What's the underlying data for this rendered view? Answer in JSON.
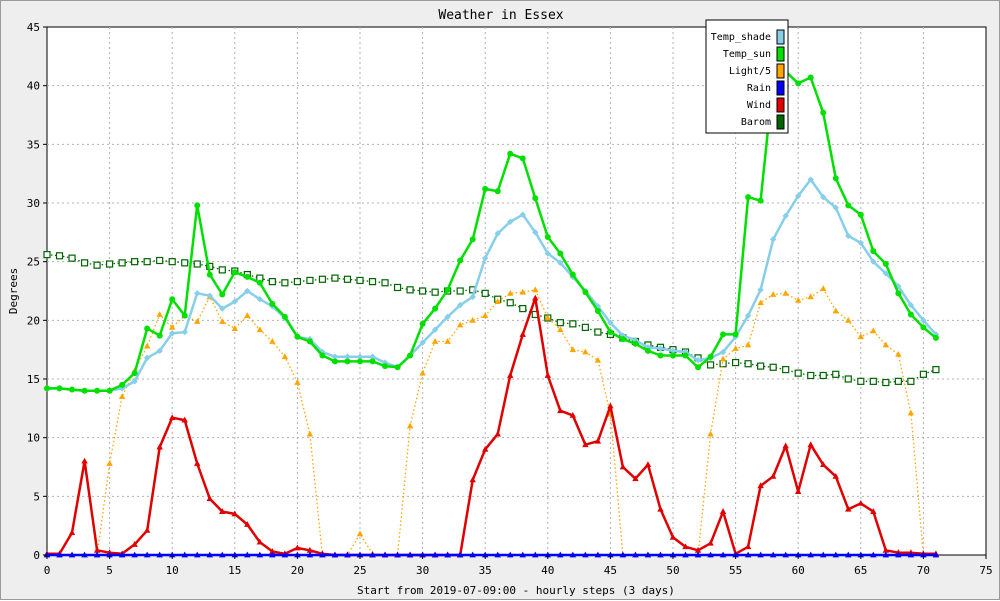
{
  "chart_data": {
    "type": "line",
    "title": "Weather in Essex",
    "xlabel": "Start from 2019-07-09:00 - hourly steps (3 days)",
    "ylabel": "Degrees",
    "xlim": [
      0,
      75
    ],
    "ylim": [
      0,
      45
    ],
    "xticks": [
      0,
      5,
      10,
      15,
      20,
      25,
      30,
      35,
      40,
      45,
      50,
      55,
      60,
      65,
      70,
      75
    ],
    "yticks": [
      0,
      5,
      10,
      15,
      20,
      25,
      30,
      35,
      40,
      45
    ],
    "grid": true,
    "legend_position": "top-right",
    "series": [
      {
        "name": "Temp_shade",
        "color": "#87ceeb",
        "marker": "diamond",
        "values": [
          14.2,
          14.2,
          14.1,
          14.0,
          14.0,
          14.0,
          14.2,
          14.8,
          16.8,
          17.4,
          18.9,
          19.0,
          22.3,
          22.1,
          21.0,
          21.6,
          22.5,
          21.8,
          21.2,
          20.2,
          18.6,
          18.4,
          17.3,
          16.9,
          16.9,
          16.9,
          16.9,
          16.4,
          16.0,
          17.0,
          18.1,
          19.2,
          20.3,
          21.3,
          22.0,
          25.3,
          27.4,
          28.4,
          29.0,
          27.5,
          25.7,
          24.9,
          23.7,
          22.5,
          21.2,
          19.8,
          18.7,
          18.3,
          17.7,
          17.6,
          17.4,
          17.3,
          16.6,
          16.8,
          17.3,
          18.6,
          20.4,
          22.6,
          26.9,
          28.9,
          30.6,
          32.0,
          30.5,
          29.6,
          27.2,
          26.6,
          25.0,
          24.0,
          22.9,
          21.3,
          20.0,
          18.8
        ]
      },
      {
        "name": "Temp_sun",
        "color": "#00e000",
        "marker": "circle",
        "values": [
          14.2,
          14.2,
          14.1,
          14.0,
          14.0,
          14.0,
          14.5,
          15.5,
          19.3,
          18.7,
          21.8,
          20.4,
          29.8,
          23.9,
          22.2,
          24.1,
          23.7,
          23.2,
          21.4,
          20.3,
          18.6,
          18.2,
          17.0,
          16.5,
          16.5,
          16.5,
          16.5,
          16.1,
          16.0,
          17.0,
          19.7,
          21.0,
          22.6,
          25.1,
          26.9,
          31.2,
          31.0,
          34.2,
          33.8,
          30.4,
          27.1,
          25.7,
          23.9,
          22.4,
          20.8,
          19.0,
          18.4,
          18.0,
          17.4,
          17.0,
          17.0,
          17.0,
          16.0,
          16.9,
          18.8,
          18.8,
          30.5,
          30.2,
          40.5,
          41.2,
          40.2,
          40.7,
          37.7,
          32.1,
          29.8,
          29.0,
          25.9,
          24.8,
          22.3,
          20.5,
          19.4,
          18.5
        ]
      },
      {
        "name": "Light/5",
        "color": "#ffa500",
        "marker": "triangle",
        "values": [
          0.0,
          0.0,
          0.0,
          0.0,
          0.0,
          7.8,
          13.5,
          15.7,
          17.8,
          20.5,
          19.4,
          20.4,
          19.9,
          22.0,
          19.9,
          19.3,
          20.4,
          19.2,
          18.2,
          16.9,
          14.7,
          10.3,
          0.0,
          0.0,
          0.0,
          1.8,
          0.1,
          0.0,
          0.0,
          11.0,
          15.5,
          18.2,
          18.2,
          19.6,
          20.0,
          20.4,
          21.6,
          22.3,
          22.4,
          22.6,
          20.2,
          19.2,
          17.5,
          17.3,
          16.6,
          12.0,
          0.0,
          0.0,
          0.0,
          0.0,
          0.0,
          0.0,
          0.0,
          10.3,
          16.7,
          17.6,
          17.9,
          21.5,
          22.2,
          22.3,
          21.7,
          22.0,
          22.7,
          20.8,
          20.0,
          18.6,
          19.1,
          17.9,
          17.1,
          12.1,
          0.0,
          0.0
        ]
      },
      {
        "name": "Rain",
        "color": "#0000ff",
        "marker": "triangle",
        "values": [
          0,
          0,
          0,
          0,
          0,
          0,
          0,
          0,
          0,
          0,
          0,
          0,
          0,
          0,
          0,
          0,
          0,
          0,
          0,
          0,
          0,
          0,
          0,
          0,
          0,
          0,
          0,
          0,
          0,
          0,
          0,
          0,
          0,
          0,
          0,
          0,
          0,
          0,
          0,
          0,
          0,
          0,
          0,
          0,
          0,
          0,
          0,
          0,
          0,
          0,
          0,
          0,
          0,
          0,
          0,
          0,
          0,
          0,
          0,
          0,
          0,
          0,
          0,
          0,
          0,
          0,
          0,
          0,
          0,
          0,
          0,
          0
        ]
      },
      {
        "name": "Wind",
        "color": "#e00000",
        "marker": "triangle",
        "values": [
          0.1,
          0.1,
          1.9,
          8.0,
          0.4,
          0.2,
          0.1,
          0.9,
          2.1,
          9.2,
          11.7,
          11.5,
          7.8,
          4.8,
          3.7,
          3.5,
          2.6,
          1.1,
          0.3,
          0.1,
          0.6,
          0.4,
          0.1,
          0.0,
          0.0,
          0.0,
          0.0,
          0.0,
          0.0,
          0.0,
          0.0,
          0.0,
          0.0,
          0.0,
          6.4,
          9.0,
          10.3,
          15.3,
          18.8,
          21.9,
          15.3,
          12.3,
          11.9,
          9.4,
          9.7,
          12.7,
          7.5,
          6.5,
          7.7,
          3.9,
          1.5,
          0.7,
          0.4,
          1.0,
          3.7,
          0.1,
          0.7,
          5.9,
          6.7,
          9.3,
          5.4,
          9.4,
          7.7,
          6.7,
          3.9,
          4.4,
          3.7,
          0.4,
          0.2,
          0.2,
          0.1,
          0.1
        ]
      },
      {
        "name": "Barom",
        "color": "#006400",
        "marker": "square",
        "values": [
          25.6,
          25.5,
          25.3,
          24.9,
          24.7,
          24.8,
          24.9,
          25.0,
          25.0,
          25.1,
          25.0,
          24.9,
          24.8,
          24.6,
          24.3,
          24.2,
          23.9,
          23.6,
          23.3,
          23.2,
          23.3,
          23.4,
          23.5,
          23.6,
          23.5,
          23.4,
          23.3,
          23.2,
          22.8,
          22.6,
          22.5,
          22.4,
          22.5,
          22.5,
          22.6,
          22.3,
          21.8,
          21.5,
          21.0,
          20.5,
          20.2,
          19.8,
          19.7,
          19.4,
          19.0,
          18.8,
          18.5,
          18.2,
          17.9,
          17.7,
          17.5,
          17.3,
          16.8,
          16.2,
          16.3,
          16.4,
          16.3,
          16.1,
          16.0,
          15.8,
          15.5,
          15.3,
          15.3,
          15.4,
          15.0,
          14.8,
          14.8,
          14.7,
          14.8,
          14.8,
          15.4,
          15.8
        ]
      }
    ]
  }
}
